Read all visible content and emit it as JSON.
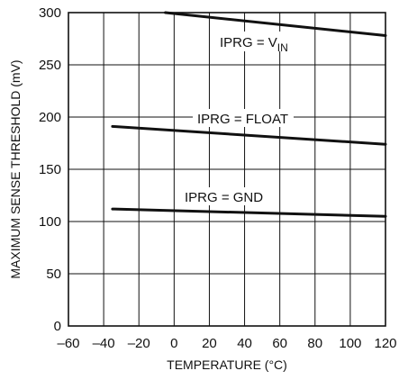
{
  "chart_data": {
    "type": "line",
    "title": "",
    "xlabel": "TEMPERATURE (°C)",
    "ylabel": "MAXIMUM SENSE THRESHOLD (mV)",
    "xlim": [
      -60,
      120
    ],
    "ylim": [
      0,
      300
    ],
    "x_ticks": [
      -60,
      -40,
      -20,
      0,
      20,
      40,
      60,
      80,
      100,
      120
    ],
    "x_tick_labels": [
      "–60",
      "–40",
      "–20",
      "0",
      "20",
      "40",
      "60",
      "80",
      "100",
      "120"
    ],
    "y_ticks": [
      0,
      50,
      100,
      150,
      200,
      250,
      300
    ],
    "y_tick_labels": [
      "0",
      "50",
      "100",
      "150",
      "200",
      "250",
      "300"
    ],
    "grid": true,
    "legend": "none",
    "series": [
      {
        "name": "IPRG = V",
        "name_subscript": "IN",
        "x": [
          -5,
          120
        ],
        "y": [
          300,
          278
        ]
      },
      {
        "name": "IPRG = FLOAT",
        "x": [
          -35,
          120
        ],
        "y": [
          191,
          174
        ]
      },
      {
        "name": "IPRG = GND",
        "x": [
          -35,
          120
        ],
        "y": [
          112,
          105
        ]
      }
    ]
  }
}
